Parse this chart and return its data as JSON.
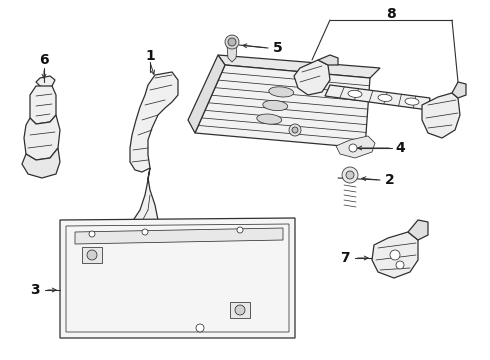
{
  "bg_color": "#ffffff",
  "line_color": "#303030",
  "label_color": "#111111",
  "fig_w": 4.9,
  "fig_h": 3.6,
  "dpi": 100,
  "lw_main": 0.9,
  "lw_thin": 0.55,
  "lw_label": 0.7
}
